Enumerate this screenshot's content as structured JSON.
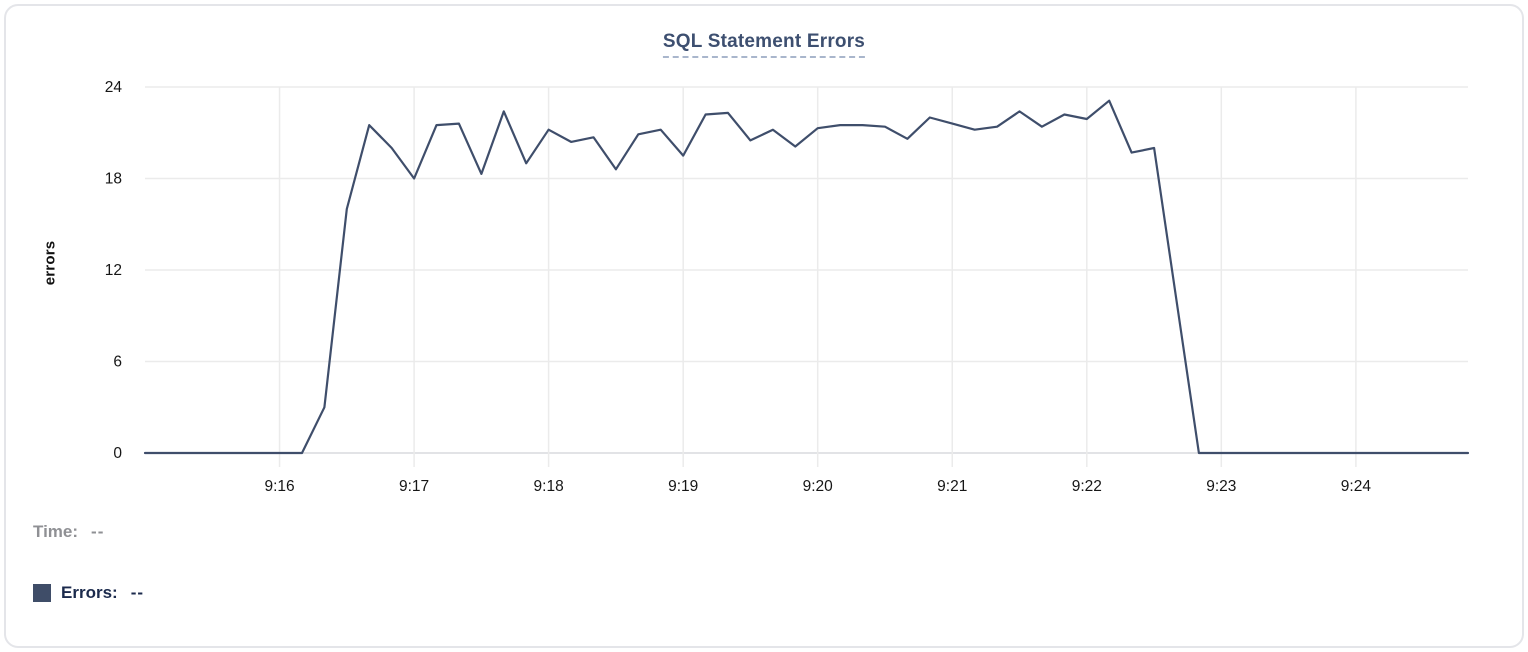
{
  "chart": {
    "title": "SQL Statement Errors",
    "tooltip": {
      "time_label": "Time:",
      "time_value": "--",
      "series_label": "Errors:",
      "series_value": "--"
    },
    "colors": {
      "line": "#3F4E6B",
      "swatch": "#3F4D68",
      "title": "#3D4F70",
      "grid": "#EBEBEB",
      "axis_baseline": "#E2E3E6",
      "tick_text": "#161616"
    }
  },
  "chart_data": {
    "type": "line",
    "title": "SQL Statement Errors",
    "xlabel": "",
    "ylabel": "errors",
    "ylim": [
      0,
      24
    ],
    "yticks": [
      0,
      6,
      12,
      18,
      24
    ],
    "xticks": [
      "9:16",
      "9:17",
      "9:18",
      "9:19",
      "9:20",
      "9:21",
      "9:22",
      "9:23",
      "9:24"
    ],
    "grid": true,
    "legend_position": "bottom-left",
    "x": [
      "9:15:00",
      "9:15:10",
      "9:15:20",
      "9:15:30",
      "9:15:40",
      "9:15:50",
      "9:16:00",
      "9:16:10",
      "9:16:20",
      "9:16:30",
      "9:16:40",
      "9:16:50",
      "9:17:00",
      "9:17:10",
      "9:17:20",
      "9:17:30",
      "9:17:40",
      "9:17:50",
      "9:18:00",
      "9:18:10",
      "9:18:20",
      "9:18:30",
      "9:18:40",
      "9:18:50",
      "9:19:00",
      "9:19:10",
      "9:19:20",
      "9:19:30",
      "9:19:40",
      "9:19:50",
      "9:20:00",
      "9:20:10",
      "9:20:20",
      "9:20:30",
      "9:20:40",
      "9:20:50",
      "9:21:00",
      "9:21:10",
      "9:21:20",
      "9:21:30",
      "9:21:40",
      "9:21:50",
      "9:22:00",
      "9:22:10",
      "9:22:20",
      "9:22:30",
      "9:22:40",
      "9:22:50",
      "9:23:00",
      "9:23:10",
      "9:23:20",
      "9:23:30",
      "9:23:40",
      "9:23:50",
      "9:24:00",
      "9:24:10",
      "9:24:20",
      "9:24:30",
      "9:24:40",
      "9:24:50"
    ],
    "series": [
      {
        "name": "Errors",
        "color": "#3F4E6B",
        "values": [
          0,
          0,
          0,
          0,
          0,
          0,
          0,
          0,
          3,
          16,
          21.5,
          20,
          18,
          21.5,
          21.6,
          18.3,
          22.4,
          19,
          21.2,
          20.4,
          20.7,
          18.6,
          20.9,
          21.2,
          19.5,
          22.2,
          22.3,
          20.5,
          21.2,
          20.1,
          21.3,
          21.5,
          21.5,
          21.4,
          20.6,
          22,
          21.6,
          21.2,
          21.4,
          22.4,
          21.4,
          22.2,
          21.9,
          23.1,
          19.7,
          20,
          10,
          0,
          0,
          0,
          0,
          0,
          0,
          0,
          0,
          0,
          0,
          0,
          0,
          0
        ]
      }
    ]
  }
}
